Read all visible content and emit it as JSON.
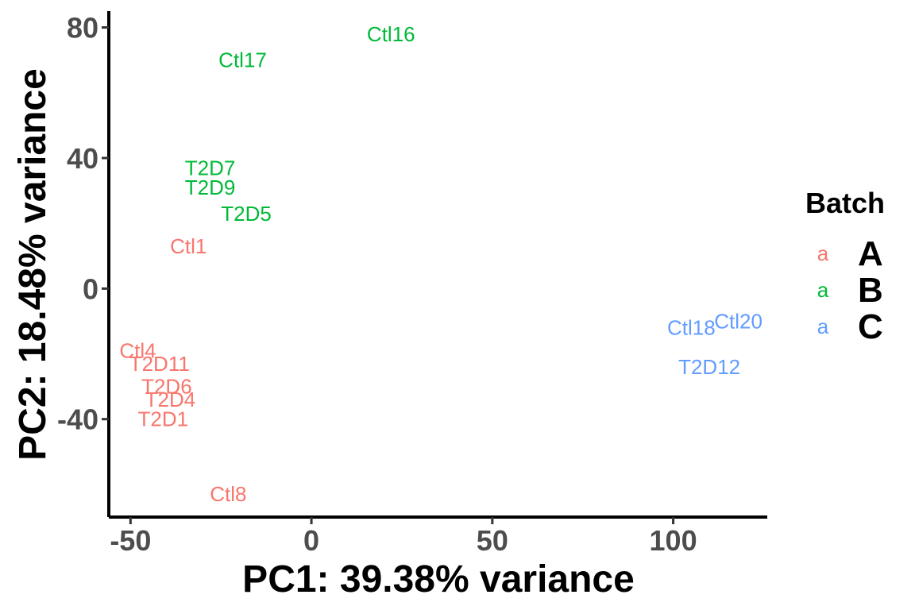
{
  "chart_data": {
    "type": "scatter",
    "xlabel": "PC1: 39.38% variance",
    "ylabel": "PC2: 18.48% variance",
    "xlim": [
      -56,
      126
    ],
    "ylim": [
      -70,
      85
    ],
    "xticks": [
      -50,
      0,
      50,
      100
    ],
    "yticks": [
      -40,
      0,
      40,
      80
    ],
    "x_tick_labels": [
      "-50",
      "0",
      "50",
      "100"
    ],
    "y_tick_labels": [
      "-40",
      "0",
      "40",
      "80"
    ],
    "grid": false,
    "legend_position": "right",
    "legend": {
      "title": "Batch",
      "key_glyph": "a",
      "entries": [
        {
          "name": "A",
          "color": "#F8766D"
        },
        {
          "name": "B",
          "color": "#00BA38"
        },
        {
          "name": "C",
          "color": "#619CFF"
        }
      ]
    },
    "points": [
      {
        "label": "Ctl16",
        "x": 22,
        "y": 78,
        "batch": "B"
      },
      {
        "label": "Ctl17",
        "x": -19,
        "y": 70,
        "batch": "B"
      },
      {
        "label": "T2D7",
        "x": -28,
        "y": 37,
        "batch": "B"
      },
      {
        "label": "T2D9",
        "x": -28,
        "y": 31,
        "batch": "B"
      },
      {
        "label": "T2D5",
        "x": -18,
        "y": 23,
        "batch": "B"
      },
      {
        "label": "Ctl1",
        "x": -34,
        "y": 13,
        "batch": "A"
      },
      {
        "label": "Ctl4",
        "x": -48,
        "y": -19,
        "batch": "A"
      },
      {
        "label": "T2D11",
        "x": -42,
        "y": -23,
        "batch": "A"
      },
      {
        "label": "T2D6",
        "x": -40,
        "y": -30,
        "batch": "A"
      },
      {
        "label": "T2D4",
        "x": -39,
        "y": -34,
        "batch": "A"
      },
      {
        "label": "T2D1",
        "x": -41,
        "y": -40,
        "batch": "A"
      },
      {
        "label": "Ctl8",
        "x": -23,
        "y": -63,
        "batch": "A"
      },
      {
        "label": "Ctl18",
        "x": 105,
        "y": -12,
        "batch": "C"
      },
      {
        "label": "Ctl20",
        "x": 118,
        "y": -10,
        "batch": "C"
      },
      {
        "label": "T2D12",
        "x": 110,
        "y": -24,
        "batch": "C"
      }
    ]
  }
}
